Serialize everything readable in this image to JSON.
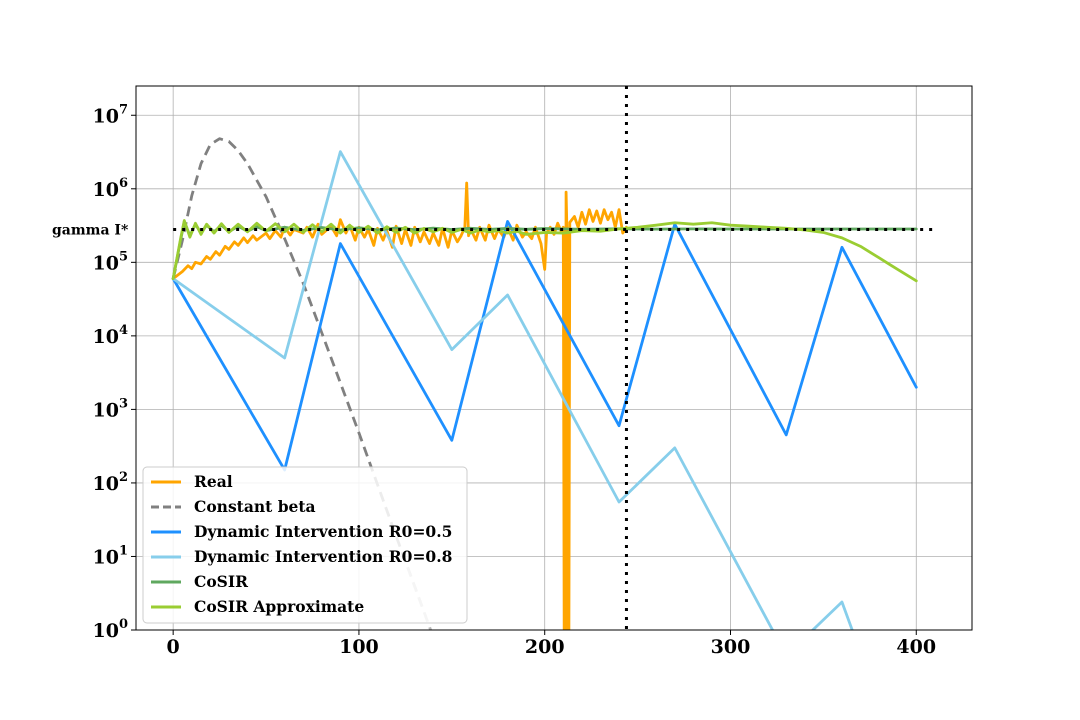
{
  "chart_data": {
    "type": "line",
    "title": "",
    "xlabel": "",
    "ylabel": "",
    "xlim": [
      -20,
      430
    ],
    "ylim": [
      1,
      25000000
    ],
    "yscale": "log",
    "grid": true,
    "legend_position": "lower-left",
    "x_ticks": [
      0,
      100,
      200,
      300,
      400
    ],
    "y_ticks": [
      {
        "value": 1,
        "base": "10",
        "exp": "0"
      },
      {
        "value": 10,
        "base": "10",
        "exp": "1"
      },
      {
        "value": 100,
        "base": "10",
        "exp": "2"
      },
      {
        "value": 1000,
        "base": "10",
        "exp": "3"
      },
      {
        "value": 10000,
        "base": "10",
        "exp": "4"
      },
      {
        "value": 100000,
        "base": "10",
        "exp": "5"
      },
      {
        "value": 1000000,
        "base": "10",
        "exp": "6"
      },
      {
        "value": 10000000,
        "base": "10",
        "exp": "7"
      }
    ],
    "annotations": [
      {
        "text": "gamma I*",
        "y": 280000
      },
      {
        "text": "vertical dotted line",
        "x": 244
      }
    ],
    "reference_lines": {
      "horizontal": {
        "y": 280000,
        "x_range": [
          0,
          410
        ],
        "color": "#000000",
        "style": "dotted"
      },
      "vertical": {
        "x": 244,
        "color": "#000000",
        "style": "dotted"
      }
    },
    "series": [
      {
        "name": "Real",
        "color": "#FFA500",
        "style": "solid",
        "points": [
          [
            0,
            60000
          ],
          [
            5,
            75000
          ],
          [
            8,
            90000
          ],
          [
            10,
            82000
          ],
          [
            12,
            100000
          ],
          [
            15,
            95000
          ],
          [
            18,
            120000
          ],
          [
            20,
            110000
          ],
          [
            23,
            140000
          ],
          [
            25,
            125000
          ],
          [
            28,
            165000
          ],
          [
            30,
            150000
          ],
          [
            33,
            190000
          ],
          [
            35,
            170000
          ],
          [
            38,
            215000
          ],
          [
            40,
            185000
          ],
          [
            43,
            230000
          ],
          [
            45,
            200000
          ],
          [
            50,
            250000
          ],
          [
            52,
            210000
          ],
          [
            55,
            270000
          ],
          [
            58,
            220000
          ],
          [
            60,
            300000
          ],
          [
            63,
            235000
          ],
          [
            65,
            280000
          ],
          [
            70,
            250000
          ],
          [
            72,
            300000
          ],
          [
            75,
            220000
          ],
          [
            78,
            330000
          ],
          [
            80,
            240000
          ],
          [
            85,
            310000
          ],
          [
            88,
            230000
          ],
          [
            90,
            380000
          ],
          [
            93,
            250000
          ],
          [
            95,
            320000
          ],
          [
            98,
            200000
          ],
          [
            100,
            300000
          ],
          [
            103,
            220000
          ],
          [
            105,
            280000
          ],
          [
            108,
            170000
          ],
          [
            110,
            290000
          ],
          [
            113,
            200000
          ],
          [
            115,
            270000
          ],
          [
            118,
            160000
          ],
          [
            120,
            310000
          ],
          [
            123,
            180000
          ],
          [
            125,
            280000
          ],
          [
            128,
            170000
          ],
          [
            130,
            300000
          ],
          [
            133,
            190000
          ],
          [
            135,
            260000
          ],
          [
            138,
            180000
          ],
          [
            140,
            250000
          ],
          [
            143,
            170000
          ],
          [
            145,
            290000
          ],
          [
            148,
            160000
          ],
          [
            150,
            270000
          ],
          [
            153,
            190000
          ],
          [
            155,
            230000
          ],
          [
            157,
            300000
          ],
          [
            158,
            1200000
          ],
          [
            159,
            230000
          ],
          [
            160,
            290000
          ],
          [
            163,
            200000
          ],
          [
            165,
            300000
          ],
          [
            168,
            200000
          ],
          [
            170,
            320000
          ],
          [
            173,
            210000
          ],
          [
            175,
            280000
          ],
          [
            178,
            220000
          ],
          [
            180,
            300000
          ],
          [
            183,
            200000
          ],
          [
            185,
            320000
          ],
          [
            188,
            220000
          ],
          [
            190,
            260000
          ],
          [
            193,
            210000
          ],
          [
            195,
            300000
          ],
          [
            198,
            180000
          ],
          [
            200,
            80000
          ],
          [
            201,
            250000
          ],
          [
            203,
            300000
          ],
          [
            205,
            240000
          ],
          [
            207,
            340000
          ],
          [
            209,
            260000
          ],
          [
            210,
            300000
          ],
          [
            210.5,
            0.5
          ],
          [
            211,
            0.5
          ],
          [
            211.5,
            900000
          ],
          [
            212,
            250000
          ],
          [
            212.3,
            0.5
          ],
          [
            213,
            0.5
          ],
          [
            213.5,
            350000
          ],
          [
            216,
            420000
          ],
          [
            218,
            300000
          ],
          [
            220,
            480000
          ],
          [
            222,
            330000
          ],
          [
            224,
            520000
          ],
          [
            226,
            360000
          ],
          [
            228,
            500000
          ],
          [
            230,
            340000
          ],
          [
            232,
            520000
          ],
          [
            234,
            380000
          ],
          [
            236,
            480000
          ],
          [
            238,
            300000
          ],
          [
            240,
            520000
          ],
          [
            242,
            250000
          ],
          [
            244,
            300000
          ]
        ]
      },
      {
        "name": "Constant beta",
        "color": "#808080",
        "style": "dashed",
        "points": [
          [
            0,
            60000
          ],
          [
            5,
            200000
          ],
          [
            10,
            800000
          ],
          [
            15,
            2200000
          ],
          [
            20,
            4000000
          ],
          [
            25,
            4800000
          ],
          [
            30,
            4400000
          ],
          [
            35,
            3300000
          ],
          [
            40,
            2200000
          ],
          [
            50,
            780000
          ],
          [
            60,
            210000
          ],
          [
            70,
            52000
          ],
          [
            80,
            11000
          ],
          [
            90,
            2300.0
          ],
          [
            100,
            480
          ],
          [
            110,
            95
          ],
          [
            120,
            19
          ],
          [
            130,
            3.9
          ],
          [
            140,
            0.8
          ],
          [
            150,
            0.16
          ]
        ]
      },
      {
        "name": "Dynamic Intervention R0=0.5",
        "color": "#1E90FF",
        "style": "solid",
        "points": [
          [
            0,
            60000
          ],
          [
            60,
            150
          ],
          [
            90,
            180000
          ],
          [
            150,
            380
          ],
          [
            180,
            360000
          ],
          [
            240,
            600
          ],
          [
            270,
            330000
          ],
          [
            330,
            450
          ],
          [
            360,
            160000
          ],
          [
            400,
            2000
          ]
        ]
      },
      {
        "name": "Dynamic Intervention R0=0.8",
        "color": "#87CEEB",
        "style": "solid",
        "points": [
          [
            0,
            60000
          ],
          [
            60,
            5000
          ],
          [
            90,
            3200000
          ],
          [
            150,
            6500
          ],
          [
            180,
            36000
          ],
          [
            240,
            55
          ],
          [
            270,
            300
          ],
          [
            330,
            0.45
          ],
          [
            360,
            2.4
          ],
          [
            380,
            0.1
          ]
        ]
      },
      {
        "name": "CoSIR",
        "color": "#5FA85F",
        "style": "solid",
        "points": [
          [
            0,
            60000
          ],
          [
            4,
            200000
          ],
          [
            6,
            360000
          ],
          [
            9,
            230000
          ],
          [
            12,
            330000
          ],
          [
            15,
            250000
          ],
          [
            18,
            320000
          ],
          [
            22,
            260000
          ],
          [
            26,
            320000
          ],
          [
            30,
            260000
          ],
          [
            35,
            310000
          ],
          [
            40,
            265000
          ],
          [
            45,
            305000
          ],
          [
            50,
            270000
          ],
          [
            60,
            300000
          ],
          [
            70,
            272000
          ],
          [
            80,
            298000
          ],
          [
            90,
            275000
          ],
          [
            100,
            295000
          ],
          [
            110,
            276000
          ],
          [
            120,
            293000
          ],
          [
            130,
            278000
          ],
          [
            140,
            292000
          ],
          [
            150,
            279000
          ],
          [
            160,
            290000
          ],
          [
            170,
            280000
          ],
          [
            180,
            289000
          ],
          [
            190,
            281000
          ],
          [
            200,
            288000
          ],
          [
            220,
            282000
          ],
          [
            240,
            286000
          ],
          [
            260,
            283000
          ],
          [
            280,
            285000
          ],
          [
            300,
            284000
          ],
          [
            330,
            284000
          ],
          [
            360,
            284000
          ],
          [
            400,
            284000
          ]
        ]
      },
      {
        "name": "CoSIR Approximate",
        "color": "#9ACD32",
        "style": "solid",
        "points": [
          [
            0,
            60000
          ],
          [
            4,
            210000
          ],
          [
            6,
            370000
          ],
          [
            9,
            220000
          ],
          [
            12,
            340000
          ],
          [
            15,
            240000
          ],
          [
            18,
            330000
          ],
          [
            22,
            250000
          ],
          [
            26,
            335000
          ],
          [
            30,
            255000
          ],
          [
            35,
            330000
          ],
          [
            40,
            260000
          ],
          [
            45,
            340000
          ],
          [
            50,
            265000
          ],
          [
            55,
            335000
          ],
          [
            60,
            260000
          ],
          [
            65,
            330000
          ],
          [
            70,
            255000
          ],
          [
            75,
            325000
          ],
          [
            80,
            260000
          ],
          [
            85,
            330000
          ],
          [
            90,
            250000
          ],
          [
            95,
            320000
          ],
          [
            100,
            255000
          ],
          [
            105,
            310000
          ],
          [
            110,
            250000
          ],
          [
            115,
            305000
          ],
          [
            120,
            255000
          ],
          [
            125,
            300000
          ],
          [
            130,
            250000
          ],
          [
            135,
            290000
          ],
          [
            140,
            260000
          ],
          [
            145,
            290000
          ],
          [
            150,
            255000
          ],
          [
            155,
            280000
          ],
          [
            160,
            250000
          ],
          [
            165,
            275000
          ],
          [
            170,
            260000
          ],
          [
            175,
            270000
          ],
          [
            180,
            250000
          ],
          [
            185,
            265000
          ],
          [
            190,
            240000
          ],
          [
            200,
            255000
          ],
          [
            210,
            250000
          ],
          [
            220,
            270000
          ],
          [
            230,
            265000
          ],
          [
            240,
            285000
          ],
          [
            250,
            300000
          ],
          [
            260,
            320000
          ],
          [
            270,
            345000
          ],
          [
            280,
            330000
          ],
          [
            290,
            345000
          ],
          [
            300,
            320000
          ],
          [
            310,
            310000
          ],
          [
            320,
            300000
          ],
          [
            330,
            290000
          ],
          [
            340,
            275000
          ],
          [
            350,
            255000
          ],
          [
            360,
            215000
          ],
          [
            370,
            165000
          ],
          [
            380,
            115000
          ],
          [
            390,
            80000
          ],
          [
            400,
            56000
          ]
        ]
      }
    ]
  }
}
